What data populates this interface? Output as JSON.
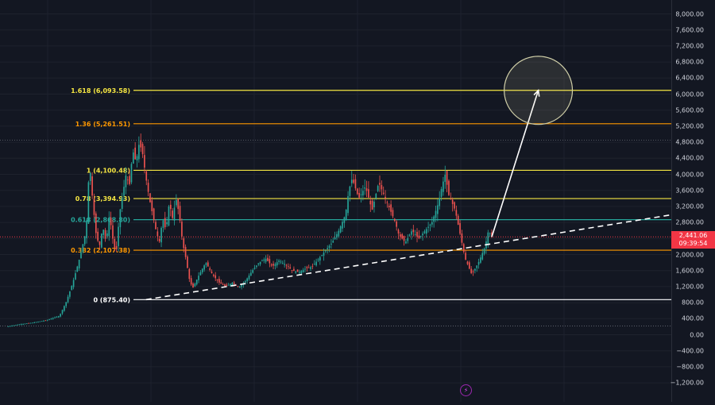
{
  "chart_data": {
    "type": "candlestick",
    "y_axis": {
      "ticks": [
        "8,000.00",
        "7,600.00",
        "7,200.00",
        "6,800.00",
        "6,400.00",
        "6,000.00",
        "5,600.00",
        "5,200.00",
        "4,800.00",
        "4,400.00",
        "4,000.00",
        "3,600.00",
        "3,200.00",
        "2,800.00",
        "2,400.00",
        "2,000.00",
        "1,600.00",
        "1,200.00",
        "800.00",
        "400.00",
        "0.00",
        "−400.00",
        "−800.00",
        "−1,200.00"
      ],
      "tick_values": [
        8000,
        7600,
        7200,
        6800,
        6400,
        6000,
        5600,
        5200,
        4800,
        4400,
        4000,
        3600,
        3200,
        2800,
        2400,
        2000,
        1600,
        1200,
        800,
        400,
        0,
        -400,
        -800,
        -1200
      ],
      "range": [
        -1400,
        8400
      ]
    },
    "fib_levels": [
      {
        "label": "1.618 (6,093.58)",
        "value": 6093.58,
        "color": "#f5e642"
      },
      {
        "label": "1.36 (5,261.51)",
        "value": 5261.51,
        "color": "#ff9800"
      },
      {
        "label": "1 (4,100.48)",
        "value": 4100.48,
        "color": "#f5e642"
      },
      {
        "label": "0.78 (3,394.93)",
        "value": 3394.93,
        "color": "#f5e642"
      },
      {
        "label": "0.618 (2,868.80)",
        "value": 2868.8,
        "color": "#26a69a"
      },
      {
        "label": "0.382 (2,107.38)",
        "value": 2107.38,
        "color": "#ff9800"
      },
      {
        "label": "0 (875.40)",
        "value": 875.4,
        "color": "#ffffff"
      }
    ],
    "current_price": {
      "value": 2441.06,
      "label": "2,441.06",
      "countdown": "09:39:54",
      "color": "#f23645"
    },
    "price_path": [
      [
        0,
        200
      ],
      [
        0.02,
        260
      ],
      [
        0.04,
        300
      ],
      [
        0.06,
        360
      ],
      [
        0.08,
        470
      ],
      [
        0.09,
        820
      ],
      [
        0.1,
        1300
      ],
      [
        0.11,
        1900
      ],
      [
        0.12,
        2600
      ],
      [
        0.125,
        4300
      ],
      [
        0.13,
        3300
      ],
      [
        0.135,
        2500
      ],
      [
        0.14,
        2200
      ],
      [
        0.145,
        2700
      ],
      [
        0.15,
        2300
      ],
      [
        0.155,
        3000
      ],
      [
        0.16,
        2400
      ],
      [
        0.165,
        2000
      ],
      [
        0.17,
        3000
      ],
      [
        0.175,
        3500
      ],
      [
        0.18,
        4000
      ],
      [
        0.185,
        3700
      ],
      [
        0.19,
        4600
      ],
      [
        0.195,
        4300
      ],
      [
        0.2,
        4800
      ],
      [
        0.205,
        4500
      ],
      [
        0.21,
        3900
      ],
      [
        0.215,
        3400
      ],
      [
        0.22,
        3000
      ],
      [
        0.225,
        2600
      ],
      [
        0.23,
        2300
      ],
      [
        0.235,
        2900
      ],
      [
        0.24,
        2600
      ],
      [
        0.245,
        3300
      ],
      [
        0.25,
        2900
      ],
      [
        0.255,
        3400
      ],
      [
        0.26,
        3000
      ],
      [
        0.265,
        2300
      ],
      [
        0.27,
        1900
      ],
      [
        0.275,
        1400
      ],
      [
        0.28,
        1150
      ],
      [
        0.29,
        1500
      ],
      [
        0.3,
        1800
      ],
      [
        0.31,
        1500
      ],
      [
        0.32,
        1300
      ],
      [
        0.33,
        1200
      ],
      [
        0.34,
        1300
      ],
      [
        0.35,
        1180
      ],
      [
        0.36,
        1350
      ],
      [
        0.37,
        1600
      ],
      [
        0.38,
        1800
      ],
      [
        0.39,
        1900
      ],
      [
        0.4,
        1700
      ],
      [
        0.41,
        1850
      ],
      [
        0.42,
        1750
      ],
      [
        0.43,
        1600
      ],
      [
        0.44,
        1560
      ],
      [
        0.45,
        1650
      ],
      [
        0.46,
        1700
      ],
      [
        0.47,
        1900
      ],
      [
        0.48,
        2100
      ],
      [
        0.49,
        2300
      ],
      [
        0.5,
        2600
      ],
      [
        0.51,
        3000
      ],
      [
        0.515,
        3600
      ],
      [
        0.52,
        3900
      ],
      [
        0.53,
        3400
      ],
      [
        0.54,
        3700
      ],
      [
        0.55,
        3100
      ],
      [
        0.56,
        3800
      ],
      [
        0.57,
        3400
      ],
      [
        0.58,
        3000
      ],
      [
        0.585,
        2800
      ],
      [
        0.59,
        2500
      ],
      [
        0.6,
        2300
      ],
      [
        0.61,
        2600
      ],
      [
        0.62,
        2400
      ],
      [
        0.63,
        2600
      ],
      [
        0.64,
        2800
      ],
      [
        0.65,
        3300
      ],
      [
        0.655,
        3700
      ],
      [
        0.66,
        4000
      ],
      [
        0.665,
        3500
      ],
      [
        0.67,
        3300
      ],
      [
        0.675,
        3100
      ],
      [
        0.68,
        2700
      ],
      [
        0.685,
        2300
      ],
      [
        0.69,
        1900
      ],
      [
        0.695,
        1700
      ],
      [
        0.7,
        1500
      ],
      [
        0.705,
        1650
      ],
      [
        0.71,
        1800
      ],
      [
        0.715,
        2000
      ],
      [
        0.72,
        2200
      ],
      [
        0.725,
        2600
      ],
      [
        0.73,
        2441
      ]
    ],
    "annotations": {
      "trendline": {
        "style": "dashed",
        "color": "#ffffff",
        "from": {
          "x": 0.21,
          "y": 875.4
        },
        "to": {
          "x": 1.0,
          "y": 2990
        }
      },
      "arrow": {
        "color": "#ffffff",
        "from": {
          "x": 0.73,
          "y": 2441
        },
        "to": {
          "x": 0.8,
          "y": 6093.58
        }
      },
      "target_circle": {
        "color": "#d0cfa8",
        "center": {
          "x": 0.8,
          "y": 6093.58
        },
        "radius_value": 850
      },
      "dotted_lines": [
        {
          "value": 4855,
          "color": "#787b86"
        },
        {
          "value": 220,
          "color": "#787b86"
        }
      ]
    },
    "grid": true
  }
}
